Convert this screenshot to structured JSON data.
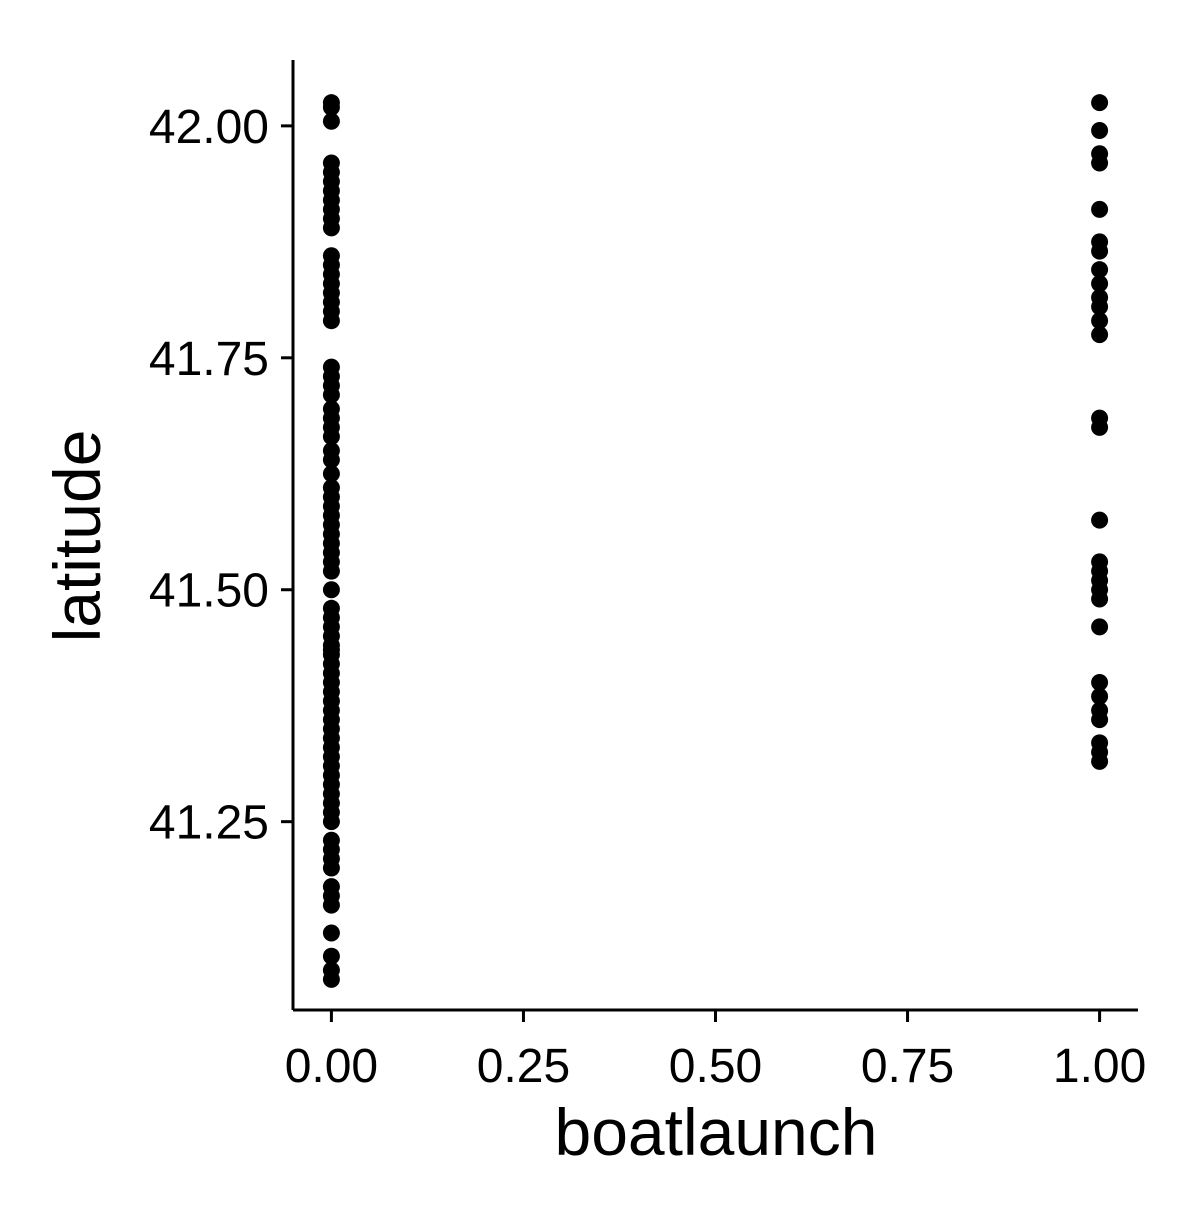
{
  "chart_data": {
    "type": "scatter",
    "title": "",
    "xlabel": "boatlaunch",
    "ylabel": "latitude",
    "xlim": [
      -0.05,
      1.05
    ],
    "ylim": [
      41.047,
      42.071
    ],
    "x_ticks": [
      0.0,
      0.25,
      0.5,
      0.75,
      1.0
    ],
    "x_tick_labels": [
      "0.00",
      "0.25",
      "0.50",
      "0.75",
      "1.00"
    ],
    "y_ticks": [
      41.25,
      41.5,
      41.75,
      42.0
    ],
    "y_tick_labels": [
      "41.25",
      "41.50",
      "41.75",
      "42.00"
    ],
    "grid": false,
    "legend": "none",
    "marker_color": "#000000",
    "series": [
      {
        "points": [
          {
            "x": 0,
            "y": 42.025
          },
          {
            "x": 0,
            "y": 42.02
          },
          {
            "x": 0,
            "y": 42.005
          },
          {
            "x": 0,
            "y": 41.96
          },
          {
            "x": 0,
            "y": 41.95
          },
          {
            "x": 0,
            "y": 41.94
          },
          {
            "x": 0,
            "y": 41.93
          },
          {
            "x": 0,
            "y": 41.92
          },
          {
            "x": 0,
            "y": 41.91
          },
          {
            "x": 0,
            "y": 41.9
          },
          {
            "x": 0,
            "y": 41.89
          },
          {
            "x": 0,
            "y": 41.86
          },
          {
            "x": 0,
            "y": 41.85
          },
          {
            "x": 0,
            "y": 41.84
          },
          {
            "x": 0,
            "y": 41.83
          },
          {
            "x": 0,
            "y": 41.82
          },
          {
            "x": 0,
            "y": 41.81
          },
          {
            "x": 0,
            "y": 41.8
          },
          {
            "x": 0,
            "y": 41.79
          },
          {
            "x": 0,
            "y": 41.74
          },
          {
            "x": 0,
            "y": 41.73
          },
          {
            "x": 0,
            "y": 41.72
          },
          {
            "x": 0,
            "y": 41.71
          },
          {
            "x": 0,
            "y": 41.695
          },
          {
            "x": 0,
            "y": 41.685
          },
          {
            "x": 0,
            "y": 41.675
          },
          {
            "x": 0,
            "y": 41.665
          },
          {
            "x": 0,
            "y": 41.65
          },
          {
            "x": 0,
            "y": 41.64
          },
          {
            "x": 0,
            "y": 41.625
          },
          {
            "x": 0,
            "y": 41.61
          },
          {
            "x": 0,
            "y": 41.6
          },
          {
            "x": 0,
            "y": 41.59
          },
          {
            "x": 0,
            "y": 41.58
          },
          {
            "x": 0,
            "y": 41.57
          },
          {
            "x": 0,
            "y": 41.56
          },
          {
            "x": 0,
            "y": 41.55
          },
          {
            "x": 0,
            "y": 41.54
          },
          {
            "x": 0,
            "y": 41.53
          },
          {
            "x": 0,
            "y": 41.52
          },
          {
            "x": 0,
            "y": 41.5
          },
          {
            "x": 0,
            "y": 41.48
          },
          {
            "x": 0,
            "y": 41.47
          },
          {
            "x": 0,
            "y": 41.46
          },
          {
            "x": 0,
            "y": 41.45
          },
          {
            "x": 0,
            "y": 41.44
          },
          {
            "x": 0,
            "y": 41.435
          },
          {
            "x": 0,
            "y": 41.43
          },
          {
            "x": 0,
            "y": 41.42
          },
          {
            "x": 0,
            "y": 41.41
          },
          {
            "x": 0,
            "y": 41.4
          },
          {
            "x": 0,
            "y": 41.39
          },
          {
            "x": 0,
            "y": 41.38
          },
          {
            "x": 0,
            "y": 41.37
          },
          {
            "x": 0,
            "y": 41.36
          },
          {
            "x": 0,
            "y": 41.35
          },
          {
            "x": 0,
            "y": 41.34
          },
          {
            "x": 0,
            "y": 41.33
          },
          {
            "x": 0,
            "y": 41.32
          },
          {
            "x": 0,
            "y": 41.31
          },
          {
            "x": 0,
            "y": 41.3
          },
          {
            "x": 0,
            "y": 41.29
          },
          {
            "x": 0,
            "y": 41.28
          },
          {
            "x": 0,
            "y": 41.27
          },
          {
            "x": 0,
            "y": 41.26
          },
          {
            "x": 0,
            "y": 41.25
          },
          {
            "x": 0,
            "y": 41.23
          },
          {
            "x": 0,
            "y": 41.22
          },
          {
            "x": 0,
            "y": 41.21
          },
          {
            "x": 0,
            "y": 41.2
          },
          {
            "x": 0,
            "y": 41.18
          },
          {
            "x": 0,
            "y": 41.17
          },
          {
            "x": 0,
            "y": 41.16
          },
          {
            "x": 0,
            "y": 41.13
          },
          {
            "x": 0,
            "y": 41.105
          },
          {
            "x": 0,
            "y": 41.09
          },
          {
            "x": 0,
            "y": 41.08
          },
          {
            "x": 1,
            "y": 42.025
          },
          {
            "x": 1,
            "y": 41.995
          },
          {
            "x": 1,
            "y": 41.97
          },
          {
            "x": 1,
            "y": 41.96
          },
          {
            "x": 1,
            "y": 41.91
          },
          {
            "x": 1,
            "y": 41.875
          },
          {
            "x": 1,
            "y": 41.865
          },
          {
            "x": 1,
            "y": 41.845
          },
          {
            "x": 1,
            "y": 41.83
          },
          {
            "x": 1,
            "y": 41.815
          },
          {
            "x": 1,
            "y": 41.805
          },
          {
            "x": 1,
            "y": 41.79
          },
          {
            "x": 1,
            "y": 41.775
          },
          {
            "x": 1,
            "y": 41.685
          },
          {
            "x": 1,
            "y": 41.675
          },
          {
            "x": 1,
            "y": 41.575
          },
          {
            "x": 1,
            "y": 41.53
          },
          {
            "x": 1,
            "y": 41.52
          },
          {
            "x": 1,
            "y": 41.51
          },
          {
            "x": 1,
            "y": 41.5
          },
          {
            "x": 1,
            "y": 41.49
          },
          {
            "x": 1,
            "y": 41.46
          },
          {
            "x": 1,
            "y": 41.4
          },
          {
            "x": 1,
            "y": 41.385
          },
          {
            "x": 1,
            "y": 41.37
          },
          {
            "x": 1,
            "y": 41.36
          },
          {
            "x": 1,
            "y": 41.335
          },
          {
            "x": 1,
            "y": 41.325
          },
          {
            "x": 1,
            "y": 41.315
          }
        ]
      }
    ]
  }
}
